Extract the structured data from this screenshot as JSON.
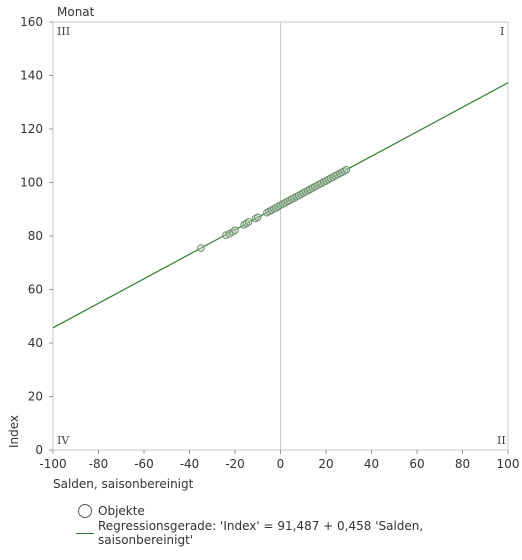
{
  "chart_data": {
    "type": "scatter",
    "title": "Monat",
    "xlabel": "Salden, saisonbereinigt",
    "ylabel": "Index",
    "xlim": [
      -100,
      100
    ],
    "ylim": [
      0,
      160
    ],
    "x_ticks": [
      -100,
      -80,
      -60,
      -40,
      -20,
      0,
      20,
      40,
      60,
      80,
      100
    ],
    "y_ticks": [
      0,
      20,
      40,
      60,
      80,
      100,
      120,
      140,
      160
    ],
    "x_tick_labels": [
      "-100",
      "-80",
      "-60",
      "-40",
      "-20",
      "0",
      "20",
      "40",
      "60",
      "80",
      "100"
    ],
    "y_tick_labels": [
      "0",
      "20",
      "40",
      "60",
      "80",
      "100",
      "120",
      "140",
      "160"
    ],
    "grid": false,
    "quadrants": {
      "top_left": "III",
      "top_right": "I",
      "bottom_left": "IV",
      "bottom_right": "II"
    },
    "regression": {
      "intercept": 91.487,
      "slope": 0.458,
      "color": "#2e7d32"
    },
    "marker_color": "#6b8f6b",
    "points": [
      [
        -35,
        75.5
      ],
      [
        -24,
        80.3
      ],
      [
        -22.5,
        80.8
      ],
      [
        -21,
        81.5
      ],
      [
        -20,
        82.2
      ],
      [
        -16,
        84.2
      ],
      [
        -15,
        84.7
      ],
      [
        -14,
        85.3
      ],
      [
        -11,
        86.5
      ],
      [
        -10,
        87
      ],
      [
        -6,
        88.7
      ],
      [
        -5,
        89.2
      ],
      [
        -4,
        89.6
      ],
      [
        -3,
        90.1
      ],
      [
        -2,
        90.5
      ],
      [
        -1,
        91
      ],
      [
        0,
        91.5
      ],
      [
        1,
        92
      ],
      [
        2,
        92.4
      ],
      [
        3,
        92.9
      ],
      [
        4,
        93.3
      ],
      [
        5,
        93.8
      ],
      [
        6,
        94.2
      ],
      [
        7,
        94.7
      ],
      [
        8,
        95.1
      ],
      [
        9,
        95.6
      ],
      [
        10,
        96.1
      ],
      [
        11,
        96.5
      ],
      [
        12,
        97
      ],
      [
        13,
        97.4
      ],
      [
        14,
        97.9
      ],
      [
        15,
        98.4
      ],
      [
        16,
        98.8
      ],
      [
        17,
        99.3
      ],
      [
        18,
        99.7
      ],
      [
        19,
        100.2
      ],
      [
        20,
        100.6
      ],
      [
        21,
        101.1
      ],
      [
        22,
        101.6
      ],
      [
        23,
        102
      ],
      [
        24,
        102.5
      ],
      [
        25,
        102.9
      ],
      [
        26,
        103.4
      ],
      [
        27,
        103.8
      ],
      [
        28,
        104.3
      ],
      [
        29,
        104.8
      ]
    ]
  },
  "legend": {
    "objects_label": "Objekte",
    "regression_label": "Regressionsgerade: 'Index'  = 91,487  + 0,458 'Salden, saisonbereinigt'"
  }
}
